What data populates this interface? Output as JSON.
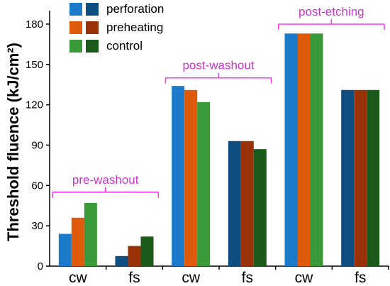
{
  "chart_data": {
    "type": "bar",
    "ylabel": "Threshold fluence (kJ/cm²)",
    "xlabel": "",
    "ylim": [
      0,
      190
    ],
    "yticks": [
      0,
      30,
      60,
      90,
      120,
      150,
      180
    ],
    "categories": [
      "cw",
      "fs",
      "cw",
      "fs",
      "cw",
      "fs"
    ],
    "series": [
      {
        "name": "perforation",
        "colors": {
          "cw": "#1b7ac9",
          "fs": "#0d4d80"
        },
        "values": [
          24,
          7.5,
          134,
          93,
          173,
          131
        ]
      },
      {
        "name": "preheating",
        "colors": {
          "cw": "#e05a0c",
          "fs": "#9a3208"
        },
        "values": [
          36,
          15,
          131,
          93,
          173,
          131
        ]
      },
      {
        "name": "control",
        "colors": {
          "cw": "#3a9a3a",
          "fs": "#1b5a1b"
        },
        "values": [
          47,
          22,
          122,
          87,
          173,
          131
        ]
      }
    ],
    "groups": [
      {
        "label": "pre-washout",
        "categories": [
          0,
          1
        ],
        "level": 55
      },
      {
        "label": "post-washout",
        "categories": [
          2,
          3
        ],
        "level": 140
      },
      {
        "label": "post-etching",
        "categories": [
          4,
          5
        ],
        "level": 180
      }
    ],
    "group_color": "#c936c9",
    "group_bracket_color": "#ff33ff",
    "legend_position": "top-left",
    "grid": false
  }
}
